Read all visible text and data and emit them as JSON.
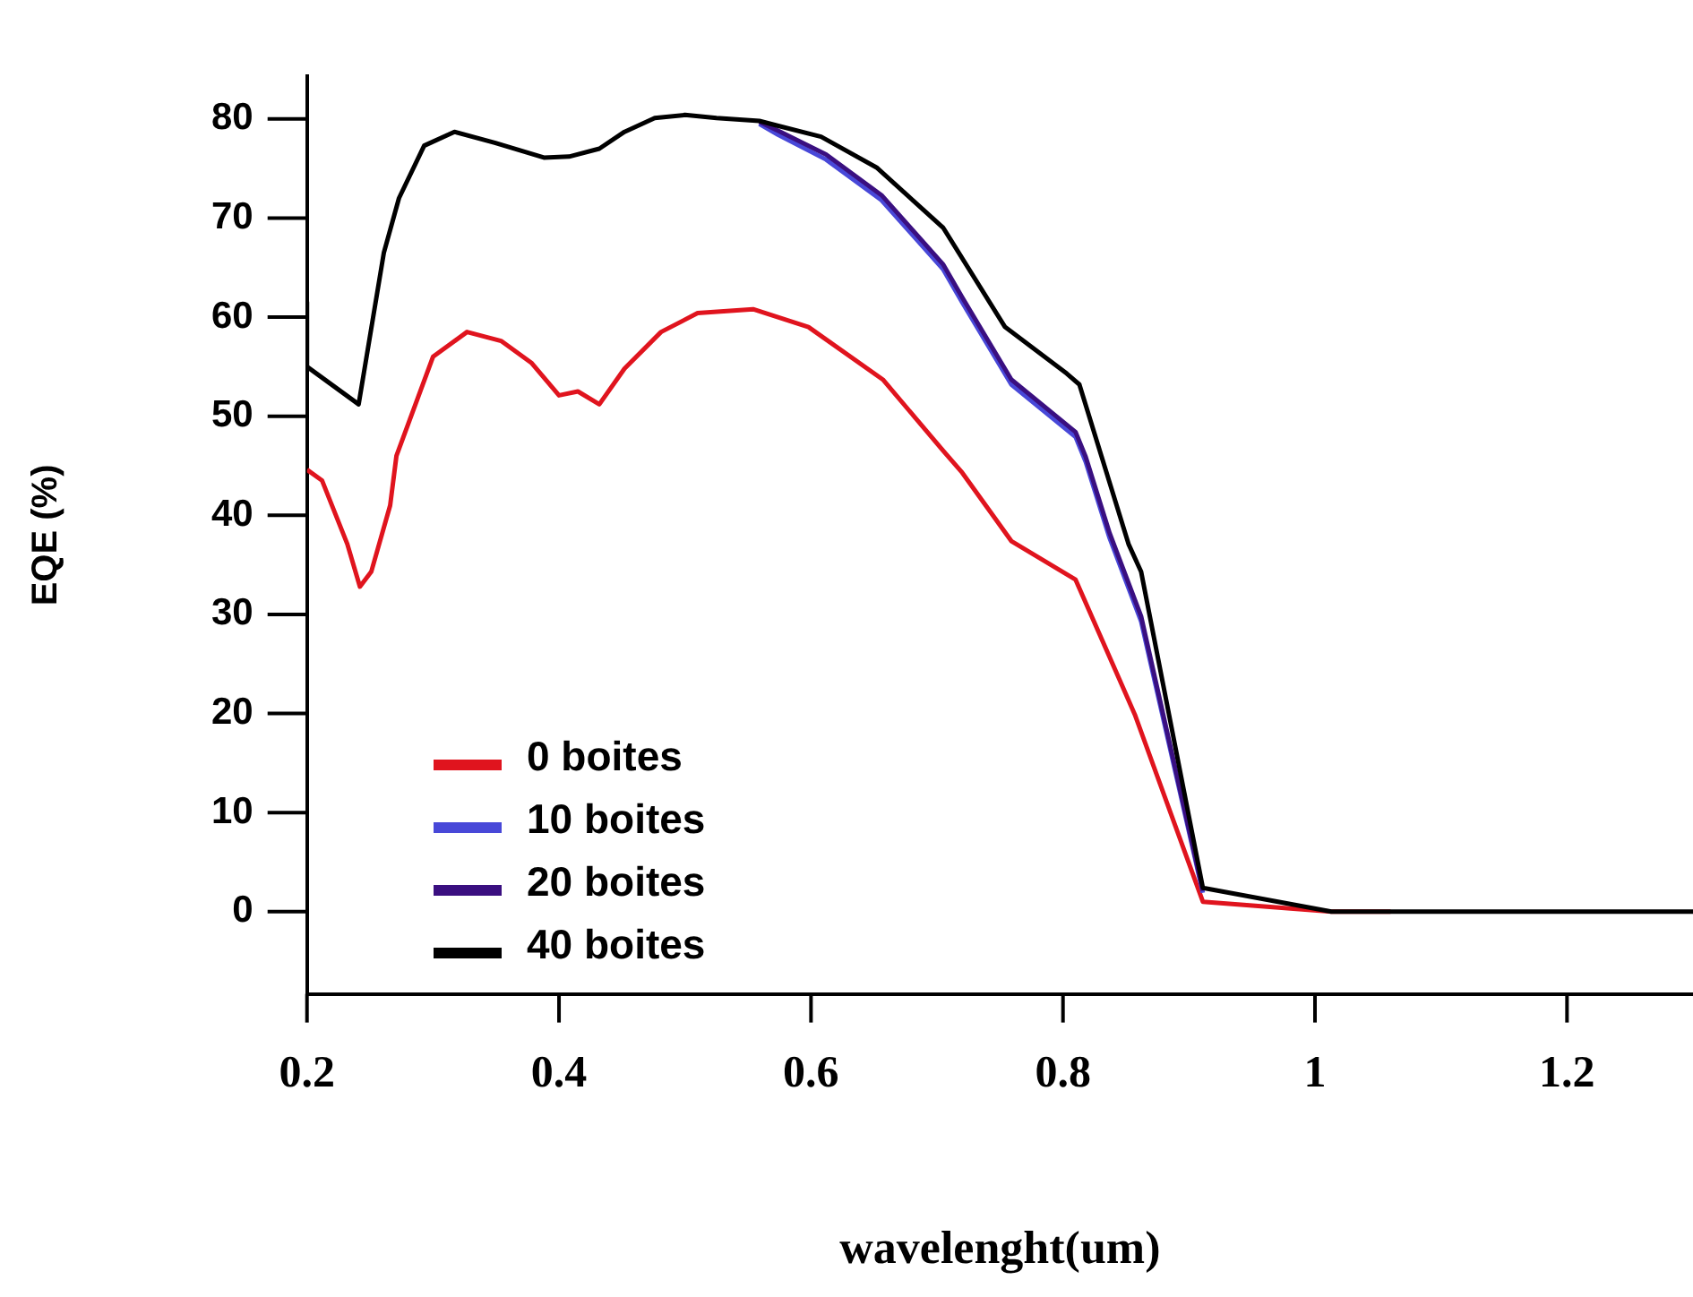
{
  "chart_data": {
    "type": "line",
    "xlabel": "wavelenght(um)",
    "ylabel": "EQE (%)",
    "xlim": [
      0.2,
      1.3
    ],
    "ylim": [
      -8.3,
      84.3
    ],
    "xticks": [
      0.2,
      0.4,
      0.6,
      0.8,
      1,
      1.2
    ],
    "yticks": [
      0,
      10,
      20,
      30,
      40,
      50,
      60,
      70,
      80
    ],
    "grid": false,
    "legend": "bottom left",
    "marker": "none",
    "line_style": "solid",
    "series": [
      {
        "name": "0 boites",
        "color": "#e0141e",
        "x": [
          0.2,
          0.212,
          0.232,
          0.242,
          0.251,
          0.266,
          0.271,
          0.3,
          0.327,
          0.354,
          0.378,
          0.4,
          0.415,
          0.432,
          0.452,
          0.481,
          0.51,
          0.554,
          0.598,
          0.657,
          0.705,
          0.72,
          0.759,
          0.81,
          0.857,
          0.911,
          1.013,
          1.06
        ],
        "values": [
          44.6,
          43.5,
          37.1,
          32.8,
          34.3,
          41,
          46,
          56,
          58.5,
          57.6,
          55.4,
          52.1,
          52.5,
          51.2,
          54.8,
          58.5,
          60.4,
          60.8,
          59,
          53.7,
          46.5,
          44.3,
          37.4,
          33.5,
          19.9,
          1,
          0,
          0
        ]
      },
      {
        "name": "10 boites",
        "color": "#4848d8",
        "x": [
          0.559,
          0.574,
          0.612,
          0.656,
          0.705,
          0.72,
          0.759,
          0.81,
          0.818,
          0.837,
          0.862,
          0.911
        ],
        "values": [
          79.5,
          78.4,
          75.9,
          71.8,
          64.8,
          61.5,
          53.2,
          47.9,
          45.4,
          37.7,
          29.3,
          1.9
        ]
      },
      {
        "name": "20 boites",
        "color": "#3a0f80",
        "x": [
          0.559,
          0.574,
          0.612,
          0.656,
          0.705,
          0.72,
          0.759,
          0.81,
          0.818,
          0.837,
          0.862,
          0.911
        ],
        "values": [
          79.7,
          78.8,
          76.4,
          72.3,
          65.3,
          62,
          53.7,
          48.4,
          45.9,
          38.2,
          29.8,
          2.1
        ]
      },
      {
        "name": "40 boites",
        "color": "#000000",
        "x": [
          0.2,
          0.2,
          0.241,
          0.261,
          0.273,
          0.293,
          0.317,
          0.349,
          0.388,
          0.408,
          0.432,
          0.452,
          0.476,
          0.5,
          0.525,
          0.559,
          0.574,
          0.608,
          0.652,
          0.705,
          0.754,
          0.803,
          0.813,
          0.852,
          0.862,
          0.911,
          1.013,
          1.3
        ],
        "values": [
          61.5,
          55,
          51.2,
          66.5,
          72,
          77.3,
          78.7,
          77.6,
          76.1,
          76.2,
          77,
          78.7,
          80.1,
          80.4,
          80.1,
          79.8,
          79.3,
          78.2,
          75.1,
          69,
          59,
          54.3,
          53.2,
          37.1,
          34.3,
          2.4,
          0,
          0
        ]
      }
    ]
  }
}
